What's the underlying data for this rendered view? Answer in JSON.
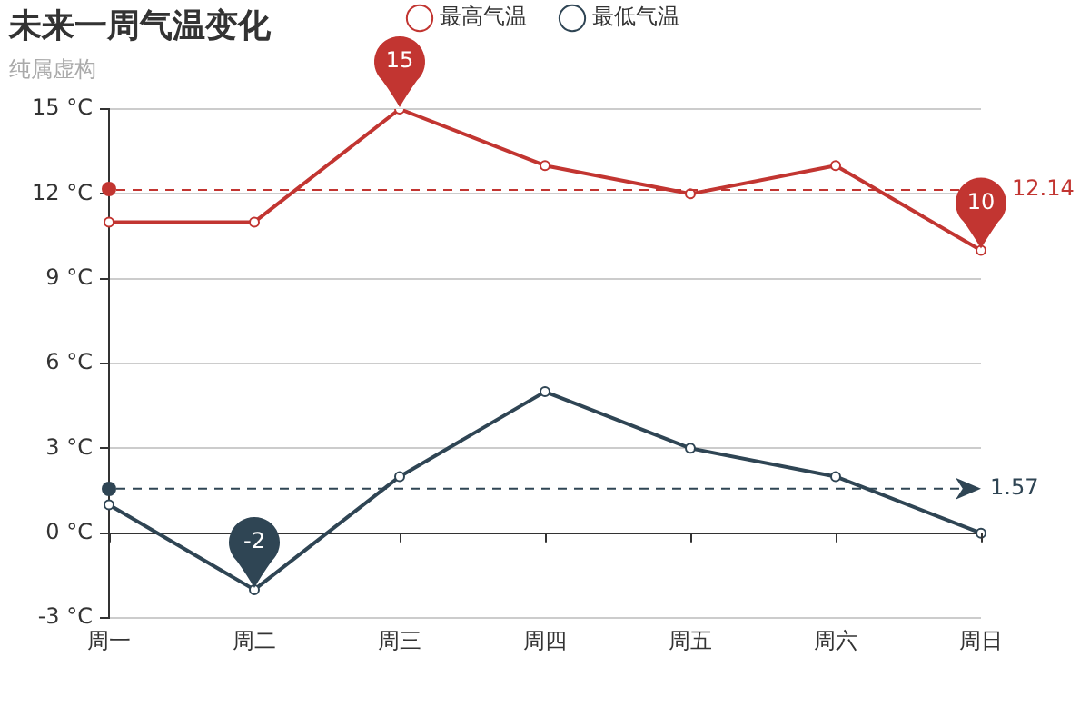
{
  "chart_data": {
    "type": "line",
    "title": "未来一周气温变化",
    "subtitle": "纯属虚构",
    "categories": [
      "周一",
      "周二",
      "周三",
      "周四",
      "周五",
      "周六",
      "周日"
    ],
    "series": [
      {
        "name": "最高气温",
        "color": "#c23531",
        "values": [
          11,
          11,
          15,
          13,
          12,
          13,
          10
        ]
      },
      {
        "name": "最低气温",
        "color": "#2f4554",
        "values": [
          1,
          -2,
          2,
          5,
          3,
          2,
          0
        ]
      }
    ],
    "ylim": [
      -3,
      15
    ],
    "yticks": [
      {
        "value": -3,
        "label": "-3 °C"
      },
      {
        "value": 0,
        "label": "0 °C"
      },
      {
        "value": 3,
        "label": "3 °C"
      },
      {
        "value": 6,
        "label": "6 °C"
      },
      {
        "value": 9,
        "label": "9 °C"
      },
      {
        "value": 12,
        "label": "12 °C"
      },
      {
        "value": 15,
        "label": "15 °C"
      }
    ],
    "grid": "y",
    "legend": "top",
    "marker": "circle",
    "line_style": "solid",
    "ref_lines": [
      {
        "axis": "y",
        "value": 12.14,
        "label": "12.14",
        "color": "#c23531",
        "line_style": "dashed"
      },
      {
        "axis": "y",
        "value": 1.57,
        "label": "1.57",
        "color": "#2f4554",
        "line_style": "dashed"
      }
    ],
    "annotations": [
      {
        "text": "15",
        "x": "周三",
        "y": 15
      },
      {
        "text": "10",
        "x": "周日",
        "y": 10
      },
      {
        "text": "-2",
        "x": "周二",
        "y": -2
      }
    ]
  }
}
